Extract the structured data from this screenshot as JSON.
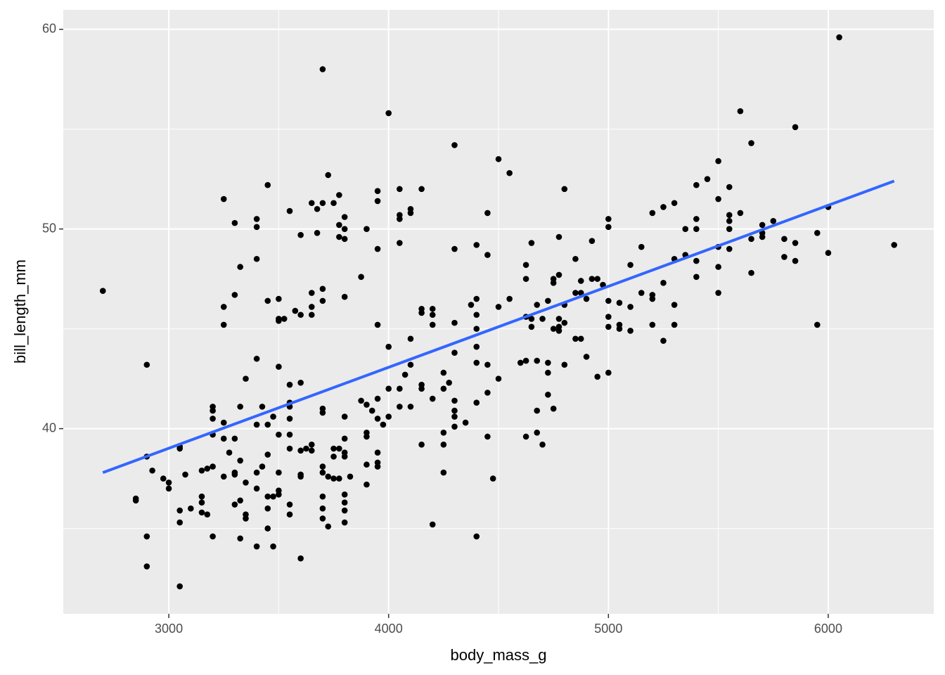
{
  "chart_data": {
    "type": "scatter",
    "x_label": "body_mass_g",
    "y_label": "bill_length_mm",
    "xlim": [
      2520,
      6480
    ],
    "ylim": [
      30.725,
      60.975
    ],
    "xticks": [
      3000,
      4000,
      5000,
      6000
    ],
    "yticks": [
      40,
      50,
      60
    ],
    "xminor": [
      3500,
      4500,
      5500
    ],
    "yminor": [
      35,
      45,
      55
    ],
    "grid": true,
    "panel_color": "#EBEBEB",
    "series": [
      {
        "color": "#000000",
        "x": [
          2700,
          2900,
          2850,
          2850,
          2900,
          2900,
          2900,
          2925,
          2975,
          3000,
          3000,
          3050,
          3050,
          3050,
          3050,
          3050,
          3075,
          3100,
          3150,
          3150,
          3150,
          3150,
          3175,
          3200,
          3200,
          3200,
          3200,
          3200,
          3175,
          3200,
          3250,
          3250,
          3250,
          3250,
          3250,
          3250,
          3275,
          3300,
          3300,
          3300,
          3300,
          3300,
          3300,
          3325,
          3325,
          3325,
          3325,
          3325,
          3350,
          3350,
          3350,
          3350,
          3400,
          3400,
          3400,
          3400,
          3400,
          3400,
          3400,
          3400,
          3425,
          3425,
          3450,
          3450,
          3450,
          3450,
          3450,
          3450,
          3450,
          3475,
          3475,
          3475,
          3500,
          3500,
          3500,
          3500,
          3500,
          3500,
          3500,
          3500,
          3525,
          3550,
          3550,
          3550,
          3550,
          3550,
          3550,
          3550,
          3550,
          3550,
          3575,
          3600,
          3600,
          3600,
          3600,
          3600,
          3600,
          3600,
          3625,
          3650,
          3650,
          3650,
          3650,
          3650,
          3650,
          3675,
          3675,
          3700,
          3700,
          3700,
          3700,
          3700,
          3700,
          3700,
          3700,
          3700,
          3700,
          3700,
          3725,
          3725,
          3725,
          3750,
          3750,
          3750,
          3750,
          3775,
          3775,
          3775,
          3775,
          3775,
          3800,
          3800,
          3800,
          3800,
          3800,
          3800,
          3800,
          3800,
          3800,
          3800,
          3800,
          3800,
          3825,
          3875,
          3875,
          3900,
          3900,
          3900,
          3900,
          3900,
          3900,
          3925,
          3950,
          3950,
          3950,
          3950,
          3950,
          3950,
          3950,
          3950,
          3950,
          3975,
          4000,
          4000,
          4000,
          4000,
          4050,
          4050,
          4050,
          4050,
          4050,
          4050,
          4075,
          4100,
          4100,
          4100,
          4100,
          4100,
          4150,
          4150,
          4150,
          4150,
          4150,
          4150,
          4200,
          4200,
          4200,
          4200,
          4200,
          4250,
          4250,
          4250,
          4250,
          4250,
          4275,
          4300,
          4300,
          4300,
          4300,
          4300,
          4300,
          4300,
          4300,
          4350,
          4375,
          4400,
          4400,
          4400,
          4400,
          4400,
          4400,
          4400,
          4400,
          4450,
          4450,
          4450,
          4450,
          4450,
          4475,
          4500,
          4500,
          4500,
          4550,
          4550,
          4600,
          4625,
          4625,
          4625,
          4625,
          4625,
          4650,
          4650,
          4650,
          4675,
          4675,
          4675,
          4675,
          4700,
          4700,
          4725,
          4725,
          4725,
          4725,
          4750,
          4750,
          4750,
          4750,
          4775,
          4775,
          4775,
          4775,
          4775,
          4800,
          4800,
          4800,
          4800,
          4850,
          4850,
          4850,
          4875,
          4875,
          4875,
          4900,
          4900,
          4925,
          4925,
          4950,
          4950,
          4975,
          5000,
          5000,
          5000,
          5000,
          5000,
          5000,
          5050,
          5050,
          5050,
          5100,
          5100,
          5100,
          5150,
          5150,
          5200,
          5200,
          5200,
          5200,
          5250,
          5250,
          5250,
          5300,
          5300,
          5300,
          5300,
          5350,
          5350,
          5400,
          5400,
          5400,
          5400,
          5400,
          5450,
          5500,
          5500,
          5500,
          5500,
          5500,
          5550,
          5550,
          5550,
          5550,
          5550,
          5600,
          5600,
          5650,
          5650,
          5650,
          5700,
          5700,
          5700,
          5750,
          5800,
          5800,
          5850,
          5850,
          5850,
          5950,
          5950,
          6000,
          6000,
          6050,
          6300
        ],
        "values": [
          46.9,
          43.2,
          36.5,
          36.4,
          34.6,
          33.1,
          38.6,
          37.9,
          37.5,
          37.3,
          37.0,
          39.0,
          39.1,
          35.9,
          35.3,
          32.1,
          37.7,
          36.0,
          36.6,
          36.3,
          35.8,
          37.9,
          38.0,
          41.1,
          40.9,
          40.5,
          39.7,
          34.6,
          35.7,
          38.1,
          51.5,
          46.1,
          45.2,
          40.3,
          39.5,
          37.6,
          38.8,
          50.3,
          46.7,
          39.5,
          37.7,
          37.8,
          36.2,
          48.1,
          41.1,
          38.4,
          36.4,
          34.5,
          42.5,
          37.3,
          35.5,
          35.7,
          50.5,
          50.1,
          48.5,
          43.5,
          40.2,
          37.8,
          37.0,
          34.1,
          41.1,
          38.1,
          52.2,
          46.4,
          40.2,
          38.7,
          36.6,
          36.0,
          35.0,
          40.6,
          36.6,
          34.1,
          46.5,
          45.5,
          45.4,
          43.1,
          39.7,
          37.8,
          36.9,
          36.7,
          45.5,
          50.9,
          42.2,
          41.3,
          41.1,
          40.5,
          39.7,
          39.0,
          36.2,
          35.7,
          45.9,
          49.7,
          45.7,
          42.3,
          38.9,
          37.7,
          37.6,
          33.5,
          39.0,
          51.3,
          46.8,
          46.1,
          45.7,
          39.2,
          38.9,
          49.8,
          51.0,
          58.0,
          51.3,
          47.0,
          46.4,
          41.0,
          40.8,
          38.1,
          37.8,
          36.6,
          36.0,
          35.5,
          52.7,
          37.6,
          35.1,
          51.3,
          39.0,
          38.6,
          37.5,
          51.7,
          50.2,
          49.6,
          39.0,
          37.5,
          50.6,
          50.0,
          49.5,
          46.6,
          40.6,
          39.5,
          38.8,
          38.6,
          36.7,
          36.3,
          35.9,
          35.3,
          37.6,
          47.6,
          41.4,
          50.0,
          41.2,
          39.8,
          39.6,
          38.2,
          37.2,
          40.9,
          51.9,
          51.4,
          49.0,
          45.2,
          41.5,
          40.5,
          38.8,
          38.3,
          38.1,
          40.2,
          55.8,
          44.1,
          42.0,
          40.6,
          52.0,
          50.7,
          50.5,
          49.3,
          42.0,
          41.1,
          42.7,
          51.0,
          50.8,
          44.5,
          43.2,
          41.1,
          52.0,
          46.0,
          45.8,
          42.2,
          42.0,
          39.2,
          46.0,
          45.7,
          45.2,
          41.5,
          35.2,
          42.8,
          42.0,
          39.8,
          39.2,
          37.8,
          42.3,
          54.2,
          49.0,
          45.3,
          43.8,
          41.4,
          40.9,
          40.6,
          40.1,
          40.3,
          46.2,
          49.2,
          46.5,
          45.7,
          45.0,
          44.1,
          43.3,
          41.3,
          34.6,
          50.8,
          48.7,
          43.2,
          41.8,
          39.6,
          37.5,
          53.5,
          46.1,
          42.5,
          52.8,
          46.5,
          43.3,
          48.2,
          47.5,
          45.6,
          43.4,
          39.6,
          49.3,
          45.5,
          45.1,
          46.2,
          43.4,
          40.9,
          39.8,
          45.5,
          39.2,
          46.4,
          43.3,
          42.8,
          41.7,
          47.5,
          47.3,
          45.0,
          41.0,
          49.6,
          47.7,
          45.5,
          45.1,
          44.9,
          52.0,
          46.2,
          45.3,
          43.2,
          48.5,
          46.8,
          44.5,
          47.4,
          46.8,
          44.5,
          46.5,
          43.6,
          49.4,
          47.5,
          47.5,
          42.6,
          47.2,
          50.5,
          50.1,
          46.4,
          45.6,
          45.1,
          42.8,
          46.3,
          45.2,
          45.0,
          48.2,
          46.1,
          44.9,
          49.1,
          46.8,
          50.8,
          46.7,
          46.5,
          45.2,
          51.1,
          47.3,
          44.4,
          51.3,
          48.5,
          46.2,
          45.2,
          50.0,
          48.7,
          52.2,
          50.5,
          50.0,
          48.4,
          47.6,
          52.5,
          53.4,
          51.5,
          49.1,
          48.1,
          46.8,
          52.1,
          50.7,
          50.4,
          50.0,
          49.0,
          55.9,
          50.8,
          54.3,
          49.5,
          47.8,
          50.2,
          49.8,
          49.6,
          50.4,
          49.5,
          48.6,
          55.1,
          49.3,
          48.4,
          49.8,
          45.2,
          51.1,
          48.8,
          59.6,
          49.2
        ]
      }
    ],
    "trend": {
      "color": "#3366FF",
      "x": [
        2700,
        6300
      ],
      "values": [
        37.8,
        52.4
      ]
    }
  }
}
